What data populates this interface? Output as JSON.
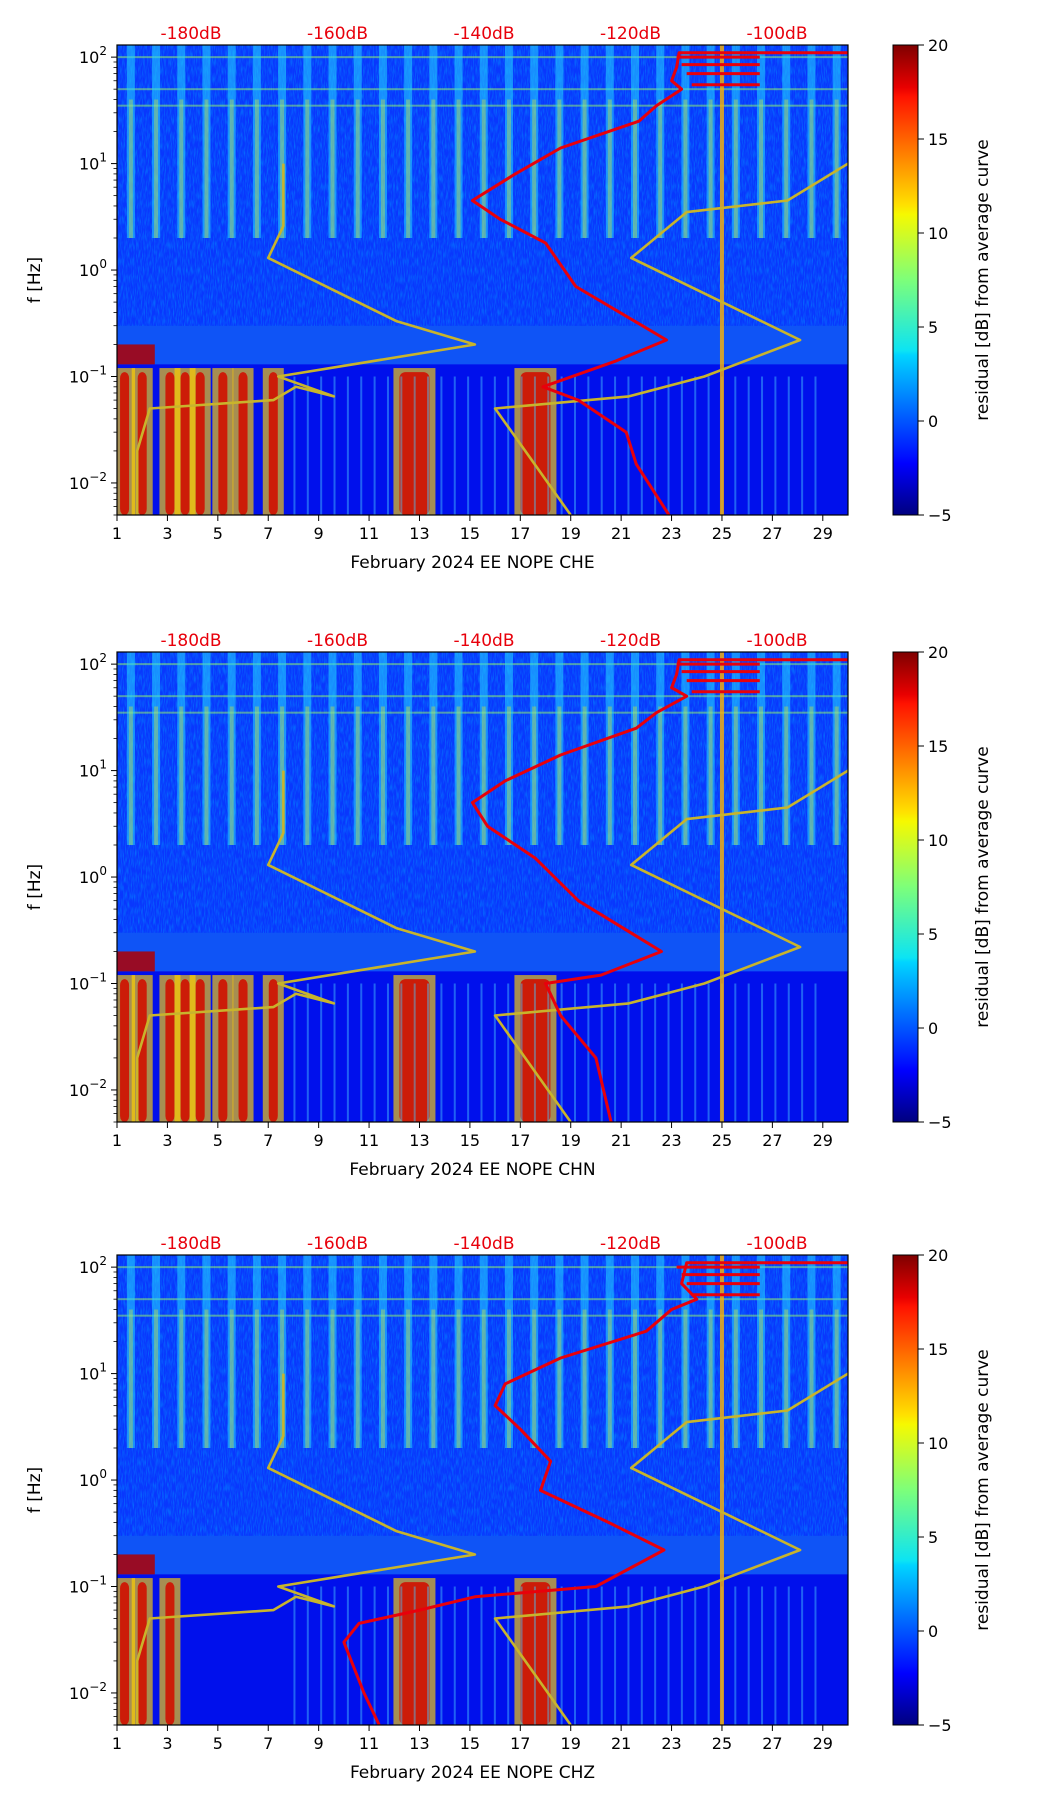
{
  "chart_data": [
    {
      "type": "heatmap",
      "title": "February 2024 EE NOPE  CHE",
      "xlabel": "February 2024 EE NOPE  CHE",
      "ylabel": "f [Hz]",
      "y_scale": "log",
      "xlim": [
        1,
        30
      ],
      "ylim": [
        0.005,
        130
      ],
      "x_ticks": [
        "1",
        "3",
        "5",
        "7",
        "9",
        "11",
        "13",
        "15",
        "17",
        "19",
        "21",
        "23",
        "25",
        "27",
        "29"
      ],
      "y_ticks": [
        {
          "base": "10",
          "exp": "2"
        },
        {
          "base": "10",
          "exp": "1"
        },
        {
          "base": "10",
          "exp": "0"
        },
        {
          "base": "10",
          "exp": "−1"
        },
        {
          "base": "10",
          "exp": "−2"
        }
      ],
      "top_axis_labels": [
        "-180dB",
        "-160dB",
        "-140dB",
        "-120dB",
        "-100dB"
      ],
      "colorbar": {
        "label": "residual [dB] from average curve",
        "min": -5,
        "max": 20,
        "ticks": [
          "20",
          "15",
          "10",
          "5",
          "0",
          "−5"
        ],
        "colormap": "jet"
      },
      "hot_days": [
        1.3,
        2.0,
        3.1,
        3.7,
        4.3,
        5.2,
        6.0,
        7.2,
        12.8,
        17.6
      ],
      "noise_curves": {
        "low_noise_model": {
          "color": "#c8b42c",
          "points": [
            [
              1.8,
              0.005
            ],
            [
              1.8,
              0.02
            ],
            [
              2.3,
              0.05
            ],
            [
              7.2,
              0.06
            ],
            [
              8.1,
              0.08
            ],
            [
              9.6,
              0.065
            ],
            [
              7.4,
              0.1
            ],
            [
              15.2,
              0.2
            ],
            [
              12.1,
              0.33
            ],
            [
              7.0,
              1.3
            ],
            [
              7.6,
              2.6
            ],
            [
              7.6,
              10
            ]
          ]
        },
        "high_noise_model": {
          "color": "#c8b42c",
          "points": [
            [
              19.0,
              0.005
            ],
            [
              16.0,
              0.05
            ],
            [
              21.3,
              0.065
            ],
            [
              24.3,
              0.1
            ],
            [
              28.1,
              0.22
            ],
            [
              21.4,
              1.3
            ],
            [
              23.6,
              3.5
            ],
            [
              27.6,
              4.5
            ],
            [
              30.0,
              10
            ]
          ]
        },
        "median_curve": {
          "color": "#e8000b",
          "points": [
            [
              22.9,
              0.005
            ],
            [
              21.6,
              0.015
            ],
            [
              21.2,
              0.03
            ],
            [
              19.3,
              0.06
            ],
            [
              17.9,
              0.08
            ],
            [
              20.8,
              0.14
            ],
            [
              22.8,
              0.22
            ],
            [
              19.2,
              0.7
            ],
            [
              18.0,
              1.8
            ],
            [
              16.2,
              3
            ],
            [
              15.1,
              4.5
            ],
            [
              16.8,
              8
            ],
            [
              18.6,
              14
            ],
            [
              21.7,
              25
            ],
            [
              22.4,
              35
            ],
            [
              23.4,
              50
            ],
            [
              23.0,
              60
            ],
            [
              23.2,
              80
            ],
            [
              23.3,
              110
            ],
            [
              30,
              110
            ]
          ]
        }
      }
    },
    {
      "type": "heatmap",
      "title": "February 2024 EE NOPE  CHN",
      "xlabel": "February 2024 EE NOPE  CHN",
      "ylabel": "f [Hz]",
      "y_scale": "log",
      "xlim": [
        1,
        30
      ],
      "ylim": [
        0.005,
        130
      ],
      "x_ticks": [
        "1",
        "3",
        "5",
        "7",
        "9",
        "11",
        "13",
        "15",
        "17",
        "19",
        "21",
        "23",
        "25",
        "27",
        "29"
      ],
      "y_ticks": [
        {
          "base": "10",
          "exp": "2"
        },
        {
          "base": "10",
          "exp": "1"
        },
        {
          "base": "10",
          "exp": "0"
        },
        {
          "base": "10",
          "exp": "−1"
        },
        {
          "base": "10",
          "exp": "−2"
        }
      ],
      "top_axis_labels": [
        "-180dB",
        "-160dB",
        "-140dB",
        "-120dB",
        "-100dB"
      ],
      "colorbar": {
        "label": "residual [dB] from average curve",
        "min": -5,
        "max": 20,
        "ticks": [
          "20",
          "15",
          "10",
          "5",
          "0",
          "−5"
        ],
        "colormap": "jet"
      },
      "hot_days": [
        1.3,
        2.0,
        3.1,
        3.7,
        4.3,
        5.2,
        6.0,
        7.2,
        12.8,
        17.6
      ],
      "noise_curves": {
        "low_noise_model": {
          "color": "#c8b42c",
          "points": [
            [
              1.8,
              0.005
            ],
            [
              1.8,
              0.02
            ],
            [
              2.3,
              0.05
            ],
            [
              7.2,
              0.06
            ],
            [
              8.1,
              0.08
            ],
            [
              9.6,
              0.065
            ],
            [
              7.4,
              0.1
            ],
            [
              15.2,
              0.2
            ],
            [
              12.1,
              0.33
            ],
            [
              7.0,
              1.3
            ],
            [
              7.6,
              2.6
            ],
            [
              7.6,
              10
            ]
          ]
        },
        "high_noise_model": {
          "color": "#c8b42c",
          "points": [
            [
              19.0,
              0.005
            ],
            [
              16.0,
              0.05
            ],
            [
              21.3,
              0.065
            ],
            [
              24.3,
              0.1
            ],
            [
              28.1,
              0.22
            ],
            [
              21.4,
              1.3
            ],
            [
              23.6,
              3.5
            ],
            [
              27.6,
              4.5
            ],
            [
              30.0,
              10
            ]
          ]
        },
        "median_curve": {
          "color": "#e8000b",
          "points": [
            [
              20.6,
              0.005
            ],
            [
              20.0,
              0.02
            ],
            [
              18.6,
              0.05
            ],
            [
              18.0,
              0.1
            ],
            [
              20.2,
              0.12
            ],
            [
              22.6,
              0.2
            ],
            [
              19.3,
              0.6
            ],
            [
              17.6,
              1.5
            ],
            [
              15.7,
              3
            ],
            [
              15.1,
              5
            ],
            [
              16.4,
              8
            ],
            [
              18.6,
              14
            ],
            [
              21.6,
              25
            ],
            [
              22.4,
              35
            ],
            [
              23.6,
              50
            ],
            [
              23.0,
              60
            ],
            [
              23.2,
              80
            ],
            [
              23.3,
              110
            ],
            [
              30,
              110
            ]
          ]
        }
      }
    },
    {
      "type": "heatmap",
      "title": "February 2024 EE NOPE  CHZ",
      "xlabel": "February 2024 EE NOPE  CHZ",
      "ylabel": "f [Hz]",
      "y_scale": "log",
      "xlim": [
        1,
        30
      ],
      "ylim": [
        0.005,
        130
      ],
      "x_ticks": [
        "1",
        "3",
        "5",
        "7",
        "9",
        "11",
        "13",
        "15",
        "17",
        "19",
        "21",
        "23",
        "25",
        "27",
        "29"
      ],
      "y_ticks": [
        {
          "base": "10",
          "exp": "2"
        },
        {
          "base": "10",
          "exp": "1"
        },
        {
          "base": "10",
          "exp": "0"
        },
        {
          "base": "10",
          "exp": "−1"
        },
        {
          "base": "10",
          "exp": "−2"
        }
      ],
      "top_axis_labels": [
        "-180dB",
        "-160dB",
        "-140dB",
        "-120dB",
        "-100dB"
      ],
      "colorbar": {
        "label": "residual [dB] from average curve",
        "min": -5,
        "max": 20,
        "ticks": [
          "20",
          "15",
          "10",
          "5",
          "0",
          "−5"
        ],
        "colormap": "jet"
      },
      "hot_days": [
        1.3,
        2.0,
        3.1,
        12.8,
        17.6
      ],
      "noise_curves": {
        "low_noise_model": {
          "color": "#c8b42c",
          "points": [
            [
              1.8,
              0.005
            ],
            [
              1.8,
              0.02
            ],
            [
              2.3,
              0.05
            ],
            [
              7.2,
              0.06
            ],
            [
              8.1,
              0.08
            ],
            [
              9.6,
              0.065
            ],
            [
              7.4,
              0.1
            ],
            [
              15.2,
              0.2
            ],
            [
              12.1,
              0.33
            ],
            [
              7.0,
              1.3
            ],
            [
              7.6,
              2.6
            ],
            [
              7.6,
              10
            ]
          ]
        },
        "high_noise_model": {
          "color": "#c8b42c",
          "points": [
            [
              19.0,
              0.005
            ],
            [
              16.0,
              0.05
            ],
            [
              21.3,
              0.065
            ],
            [
              24.3,
              0.1
            ],
            [
              28.1,
              0.22
            ],
            [
              21.4,
              1.3
            ],
            [
              23.6,
              3.5
            ],
            [
              27.6,
              4.5
            ],
            [
              30.0,
              10
            ]
          ]
        },
        "median_curve": {
          "color": "#e8000b",
          "points": [
            [
              11.4,
              0.005
            ],
            [
              10.8,
              0.01
            ],
            [
              10.0,
              0.03
            ],
            [
              10.6,
              0.045
            ],
            [
              13.0,
              0.06
            ],
            [
              15.2,
              0.08
            ],
            [
              20.0,
              0.1
            ],
            [
              22.7,
              0.22
            ],
            [
              20.5,
              0.4
            ],
            [
              17.8,
              0.8
            ],
            [
              18.2,
              1.5
            ],
            [
              17.0,
              3
            ],
            [
              16.0,
              5
            ],
            [
              16.4,
              8
            ],
            [
              18.6,
              14
            ],
            [
              22.0,
              25
            ],
            [
              23.0,
              40
            ],
            [
              24.0,
              50
            ],
            [
              23.4,
              70
            ],
            [
              23.6,
              110
            ],
            [
              30,
              110
            ]
          ]
        }
      }
    }
  ]
}
